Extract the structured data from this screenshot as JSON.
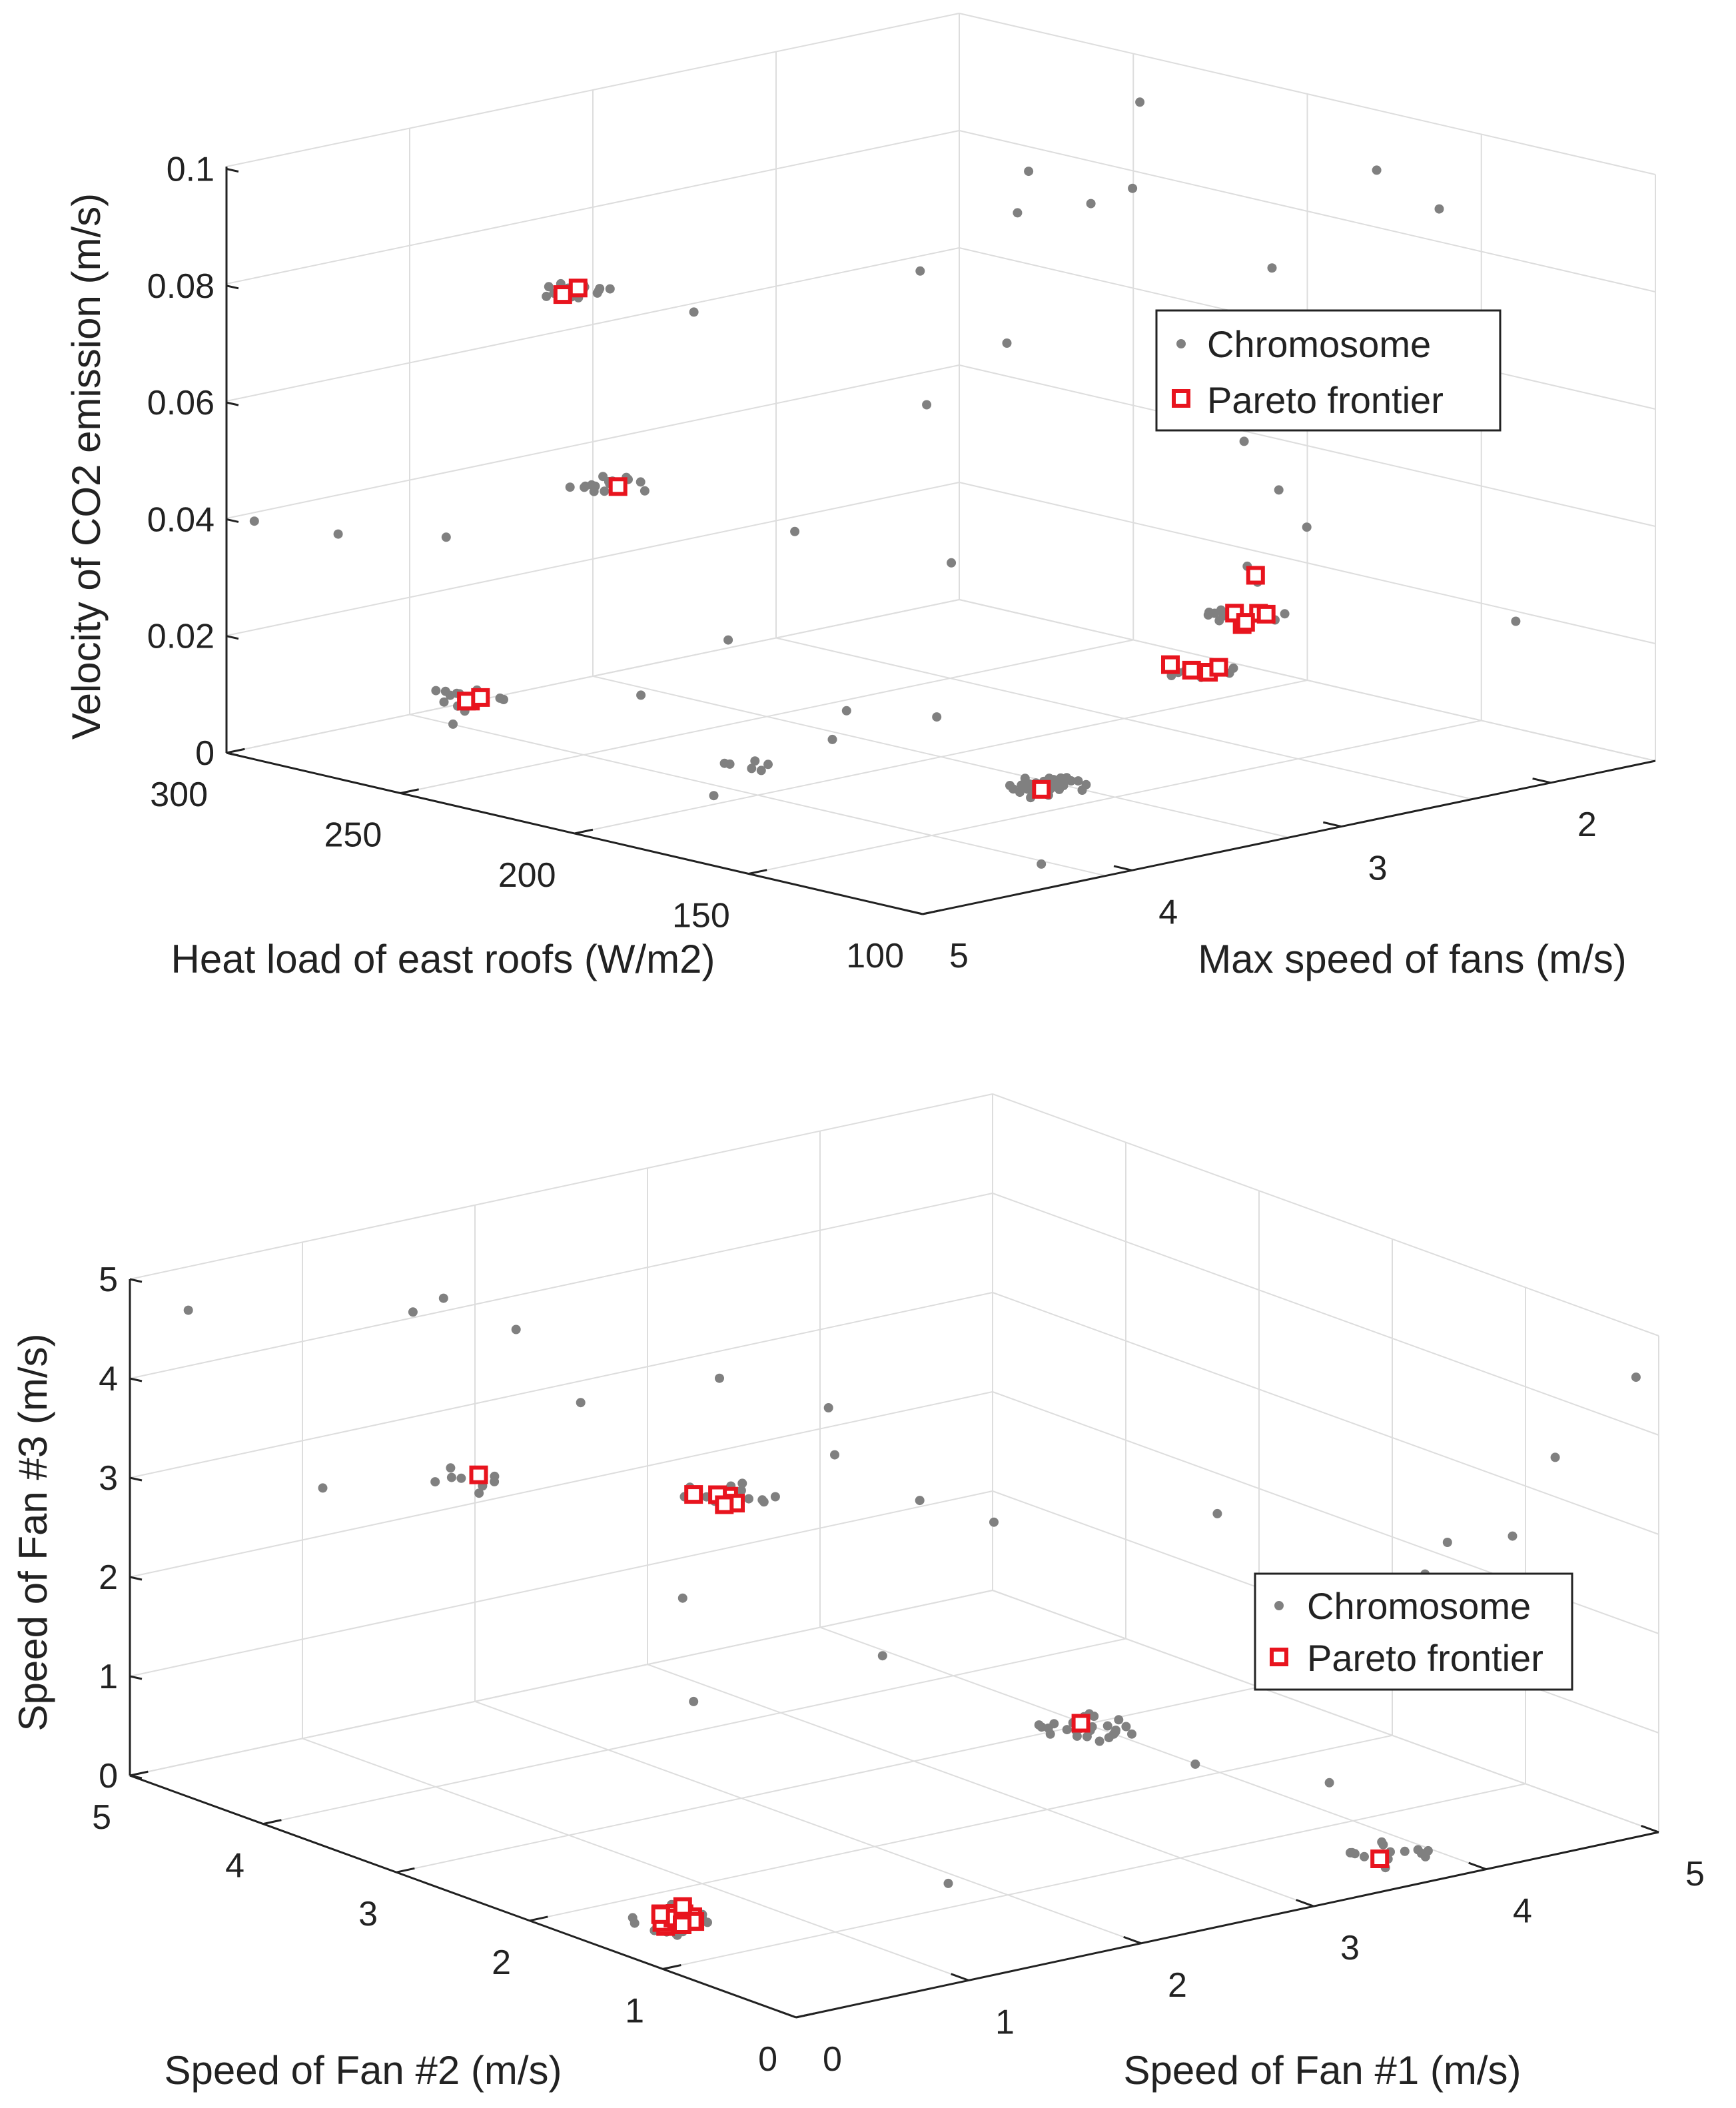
{
  "colors": {
    "chromosome": "#808080",
    "pareto": "#e8141e",
    "grid": "#dddddd",
    "axis": "#222222"
  },
  "chart_data": [
    {
      "type": "scatter3d",
      "zlabel": "Velocity of CO2 emission (m/s)",
      "xlabel": "Heat load of east roofs (W/m2)",
      "ylabel": "Max speed of fans (m/s)",
      "xlim": [
        100,
        300
      ],
      "ylim": [
        1.5,
        5
      ],
      "zlim": [
        0,
        0.1
      ],
      "xticks": [
        300,
        250,
        200,
        150,
        100
      ],
      "yticks": [
        5,
        4,
        3,
        2
      ],
      "zticks": [
        0,
        0.02,
        0.04,
        0.06,
        0.08,
        0.1
      ],
      "ztick_labels": [
        "0",
        "0.02",
        "0.04",
        "0.06",
        "0.08",
        "0.1"
      ],
      "legend": [
        "Chromosome",
        "Pareto frontier"
      ],
      "legend_location": "right",
      "clusters": [
        {
          "x": 270,
          "y": 3.8,
          "z": 0.074,
          "n": 14,
          "pareto": 2
        },
        {
          "x": 232,
          "y": 4.3,
          "z": 0.05,
          "n": 16,
          "pareto": 1
        },
        {
          "x": 258,
          "y": 4.55,
          "z": 0.012,
          "n": 12,
          "pareto": 3
        },
        {
          "x": 220,
          "y": 3.9,
          "z": 0.0,
          "n": 6,
          "pareto": 0
        },
        {
          "x": 112,
          "y": 4.2,
          "z": 0.014,
          "n": 30,
          "pareto": 1
        },
        {
          "x": 108,
          "y": 3.55,
          "z": 0.03,
          "n": 10,
          "pareto": 4
        },
        {
          "x": 105,
          "y": 3.4,
          "z": 0.038,
          "n": 10,
          "pareto": 5
        },
        {
          "x": 103,
          "y": 3.3,
          "z": 0.044,
          "n": 0,
          "pareto": 1
        }
      ],
      "scatter": [
        [
          200,
          2.3,
          0.105
        ],
        [
          160,
          3.0,
          0.101
        ],
        [
          175,
          3.3,
          0.097
        ],
        [
          190,
          2.7,
          0.092
        ],
        [
          150,
          2.0,
          0.098
        ],
        [
          120,
          2.2,
          0.097
        ],
        [
          150,
          2.5,
          0.085
        ],
        [
          215,
          3.1,
          0.08
        ],
        [
          160,
          3.6,
          0.079
        ],
        [
          128,
          3.0,
          0.072
        ],
        [
          165,
          3.9,
          0.07
        ],
        [
          155,
          2.55,
          0.055
        ],
        [
          280,
          3.1,
          0.064
        ],
        [
          250,
          2.0,
          0.084
        ],
        [
          285,
          4.2,
          0.033
        ],
        [
          245,
          3.2,
          0.032
        ],
        [
          210,
          4.1,
          0.025
        ],
        [
          140,
          2.5,
          0.042
        ],
        [
          130,
          2.8,
          0.052
        ],
        [
          115,
          3.2,
          0.044
        ],
        [
          182,
          4.0,
          0.016
        ],
        [
          205,
          4.6,
          0.02
        ],
        [
          150,
          4.6,
          0.02
        ],
        [
          120,
          4.6,
          0.028
        ],
        [
          88,
          3.6,
          0.048
        ],
        [
          92,
          2.3,
          0.031
        ],
        [
          295,
          4.95,
          0.04
        ],
        [
          298,
          4.5,
          0.034
        ],
        [
          160,
          5.0,
          0.012
        ],
        [
          188,
          3.4,
          0.036
        ],
        [
          265,
          4.5,
          0.006
        ],
        [
          105,
          4.35,
          0.003
        ]
      ]
    },
    {
      "type": "scatter3d",
      "zlabel": "Speed of Fan #3 (m/s)",
      "xlabel": "Speed of Fan #2 (m/s)",
      "ylabel": "Speed of Fan #1 (m/s)",
      "xlim": [
        0,
        5
      ],
      "ylim": [
        0,
        5
      ],
      "zlim": [
        0,
        5
      ],
      "xticks": [
        5,
        4,
        3,
        2,
        1,
        0
      ],
      "yticks": [
        0,
        1,
        2,
        3,
        4,
        5
      ],
      "zticks": [
        0,
        1,
        2,
        3,
        4,
        5
      ],
      "ztick_labels": [
        "0",
        "1",
        "2",
        "3",
        "4",
        "5"
      ],
      "legend": [
        "Chromosome",
        "Pareto frontier"
      ],
      "legend_location": "right",
      "clusters": [
        {
          "x": 1.35,
          "y": 0.35,
          "z": 0.2,
          "n": 18,
          "pareto": 16
        },
        {
          "x": 2.6,
          "y": 1.6,
          "z": 3.4,
          "n": 14,
          "pareto": 6
        },
        {
          "x": 3.5,
          "y": 0.8,
          "z": 3.4,
          "n": 8,
          "pareto": 1
        },
        {
          "x": 0.2,
          "y": 3.6,
          "z": 0.2,
          "n": 14,
          "pareto": 1
        },
        {
          "x": 0.85,
          "y": 2.35,
          "z": 1.6,
          "n": 28,
          "pareto": 1
        }
      ],
      "scatter": [
        [
          4.95,
          0.3,
          4.6
        ],
        [
          4.3,
          1.1,
          4.6
        ],
        [
          4.2,
          1.2,
          4.75
        ],
        [
          3.85,
          1.35,
          4.55
        ],
        [
          3.3,
          1.3,
          4.1
        ],
        [
          3.1,
          1.95,
          4.2
        ],
        [
          2.8,
          2.35,
          3.9
        ],
        [
          2.3,
          2.0,
          3.8
        ],
        [
          4.2,
          0.5,
          3.1
        ],
        [
          2.4,
          3.0,
          2.7
        ],
        [
          2.2,
          2.2,
          1.75
        ],
        [
          3.7,
          2.2,
          1.6
        ],
        [
          3.1,
          1.8,
          1.0
        ],
        [
          0.5,
          2.7,
          1.3
        ],
        [
          1.5,
          3.6,
          3.0
        ],
        [
          0.55,
          4.2,
          2.95
        ],
        [
          0.4,
          3.4,
          0.9
        ],
        [
          0.25,
          4.4,
          2.0
        ],
        [
          0.45,
          4.5,
          2.95
        ],
        [
          0.0,
          4.4,
          4.0
        ],
        [
          0.3,
          5.1,
          4.4
        ],
        [
          0.2,
          3.8,
          2.95
        ],
        [
          0.8,
          1.5,
          0.4
        ],
        [
          2.05,
          2.3,
          3.35
        ]
      ]
    }
  ]
}
